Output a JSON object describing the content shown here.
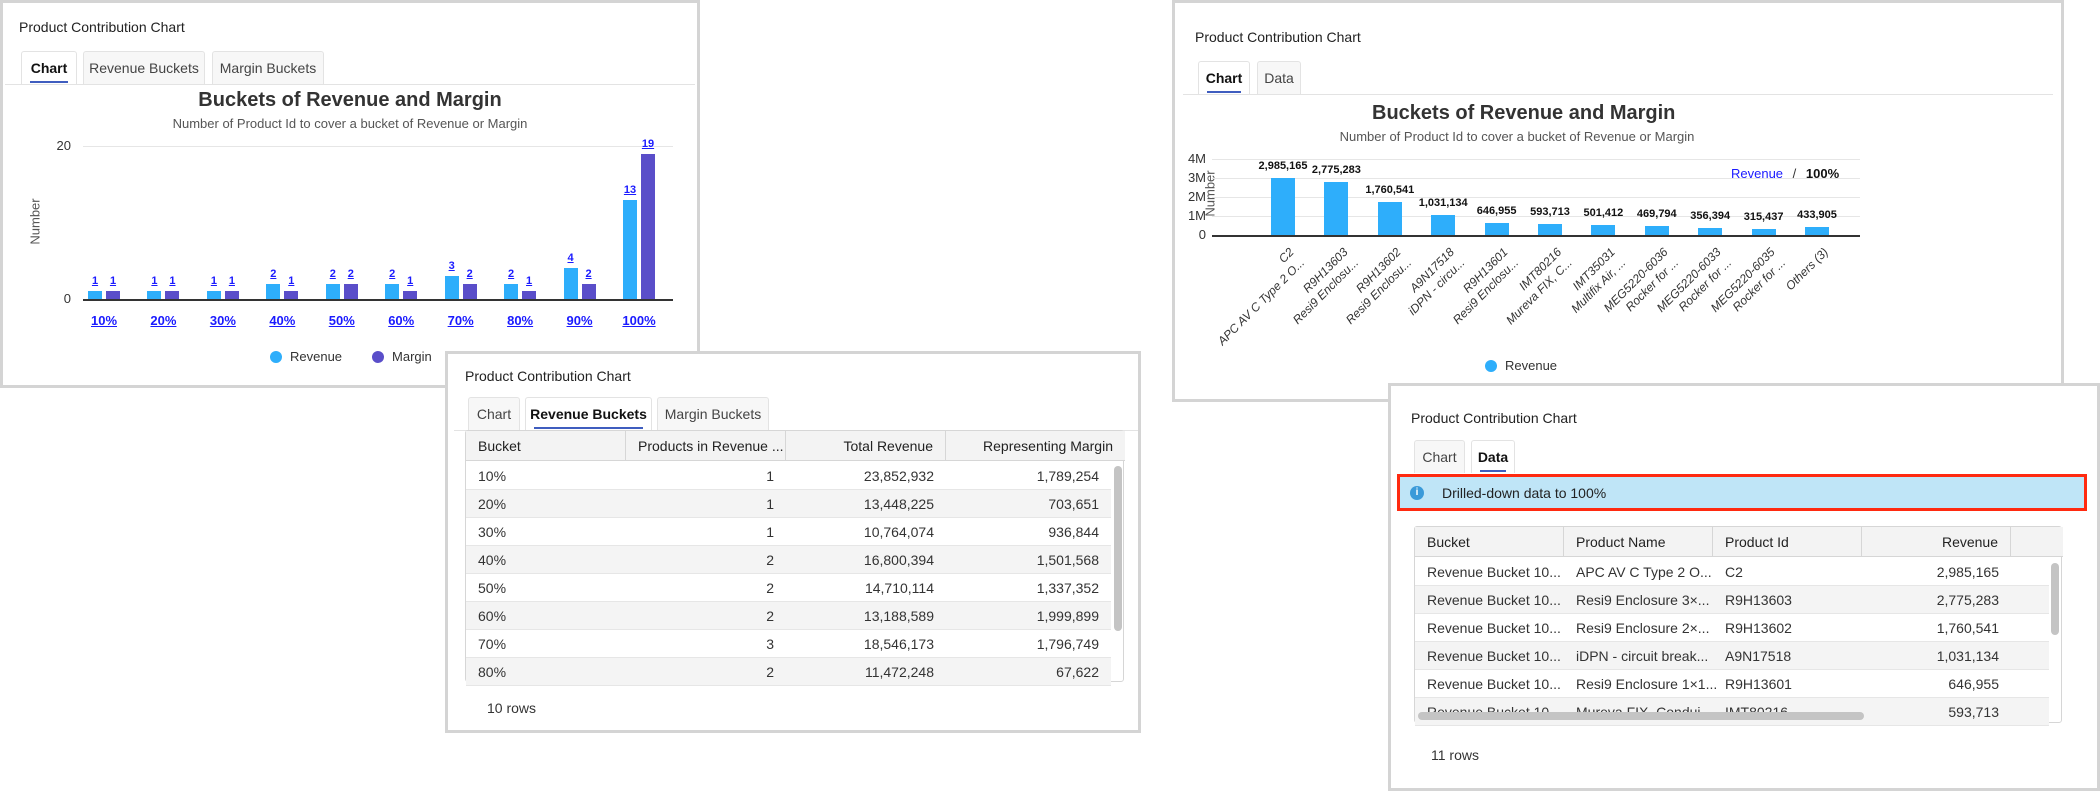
{
  "panel_title": "Product Contribution Chart",
  "panel1": {
    "tabs": [
      {
        "label": "Chart",
        "active": true
      },
      {
        "label": "Revenue Buckets",
        "active": false
      },
      {
        "label": "Margin Buckets",
        "active": false
      }
    ]
  },
  "panel2": {
    "tabs": [
      {
        "label": "Chart",
        "active": false
      },
      {
        "label": "Revenue Buckets",
        "active": true
      },
      {
        "label": "Margin Buckets",
        "active": false
      }
    ],
    "columns": [
      "Bucket",
      "Products in Revenue ...",
      "Total Revenue",
      "Representing Margin"
    ],
    "rows": [
      [
        "10%",
        "1",
        "23,852,932",
        "1,789,254"
      ],
      [
        "20%",
        "1",
        "13,448,225",
        "703,651"
      ],
      [
        "30%",
        "1",
        "10,764,074",
        "936,844"
      ],
      [
        "40%",
        "2",
        "16,800,394",
        "1,501,568"
      ],
      [
        "50%",
        "2",
        "14,710,114",
        "1,337,352"
      ],
      [
        "60%",
        "2",
        "13,188,589",
        "1,999,899"
      ],
      [
        "70%",
        "3",
        "18,546,173",
        "1,796,749"
      ],
      [
        "80%",
        "2",
        "11,472,248",
        "67,622"
      ]
    ],
    "row_count": "10 rows"
  },
  "panel3": {
    "tabs": [
      {
        "label": "Chart",
        "active": true
      },
      {
        "label": "Data",
        "active": false
      }
    ],
    "breadcrumb": {
      "link": "Revenue",
      "separator": "/",
      "current": "100%"
    }
  },
  "panel4": {
    "tabs": [
      {
        "label": "Chart",
        "active": false
      },
      {
        "label": "Data",
        "active": true
      }
    ],
    "info_banner": "Drilled-down data to 100%",
    "columns": [
      "Bucket",
      "Product Name",
      "Product Id",
      "Revenue"
    ],
    "rows": [
      [
        "Revenue Bucket 10...",
        "APC AV C Type 2 O...",
        "C2",
        "2,985,165"
      ],
      [
        "Revenue Bucket 10...",
        "Resi9 Enclosure 3×...",
        "R9H13603",
        "2,775,283"
      ],
      [
        "Revenue Bucket 10...",
        "Resi9 Enclosure 2×...",
        "R9H13602",
        "1,760,541"
      ],
      [
        "Revenue Bucket 10...",
        "iDPN - circuit break...",
        "A9N17518",
        "1,031,134"
      ],
      [
        "Revenue Bucket 10...",
        "Resi9 Enclosure 1×1...",
        "R9H13601",
        "646,955"
      ],
      [
        "Revenue Bucket 10...",
        "Mureva FIX, Condui...",
        "IMT80216",
        "593,713"
      ]
    ],
    "row_count": "11 rows"
  },
  "colors": {
    "revenue": "#2eaefb",
    "margin": "#5a4ec9",
    "link": "#1a1aff",
    "highlight_border": "#ff2a10",
    "info_bg": "#bfe5f7",
    "info_icon": "#3a9ad9"
  },
  "chart_data": [
    {
      "type": "bar",
      "title": "Buckets of Revenue and Margin",
      "subtitle": "Number of Product Id to cover a bucket of Revenue or Margin",
      "ylabel": "Number",
      "xlabel": "",
      "ylim": [
        0,
        20
      ],
      "yticks": [
        "0",
        "20"
      ],
      "grid": true,
      "legend": "bottom",
      "categories": [
        "10%",
        "20%",
        "30%",
        "40%",
        "50%",
        "60%",
        "70%",
        "80%",
        "90%",
        "100%"
      ],
      "series": [
        {
          "name": "Revenue",
          "values": [
            1,
            1,
            1,
            2,
            2,
            2,
            3,
            2,
            4,
            13
          ]
        },
        {
          "name": "Margin",
          "values": [
            1,
            1,
            1,
            1,
            2,
            1,
            2,
            1,
            2,
            19
          ]
        }
      ]
    },
    {
      "type": "bar",
      "title": "Buckets of Revenue and Margin",
      "subtitle": "Number of Product Id to cover a bucket of Revenue or Margin",
      "ylabel": "Number",
      "xlabel": "",
      "ylim": [
        0,
        4000000
      ],
      "yticks": [
        "0",
        "1M",
        "2M",
        "3M",
        "4M"
      ],
      "grid": true,
      "legend": "bottom",
      "categories": [
        [
          "C2",
          "APC AV C Type 2 O..."
        ],
        [
          "R9H13603",
          "Resi9 Enclosu..."
        ],
        [
          "R9H13602",
          "Resi9 Enclosu..."
        ],
        [
          "A9N17518",
          "iDPN - circu..."
        ],
        [
          "R9H13601",
          "Resi9 Enclosu..."
        ],
        [
          "IMT80216",
          "Mureva FIX, C..."
        ],
        [
          "IMT35031",
          "Multifix Air, ..."
        ],
        [
          "MEG5220-6036",
          "Rocker for ..."
        ],
        [
          "MEG5220-6033",
          "Rocker for ..."
        ],
        [
          "MEG5220-6035",
          "Rocker for ..."
        ],
        [
          "Others (3)"
        ]
      ],
      "series": [
        {
          "name": "Revenue",
          "values": [
            2985165,
            2775283,
            1760541,
            1031134,
            646955,
            593713,
            501412,
            469794,
            356394,
            315437,
            433905
          ],
          "labels": [
            "2,985,165",
            "2,775,283",
            "1,760,541",
            "1,031,134",
            "646,955",
            "593,713",
            "501,412",
            "469,794",
            "356,394",
            "315,437",
            "433,905"
          ]
        }
      ]
    }
  ]
}
